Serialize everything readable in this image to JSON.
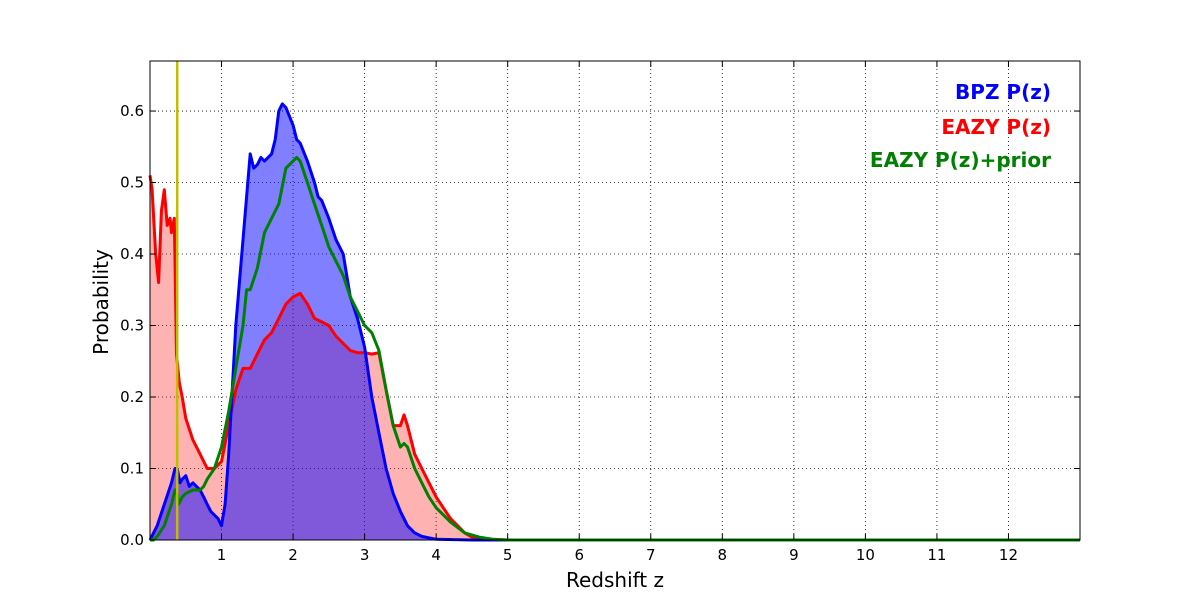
{
  "chart_data": {
    "type": "area",
    "title": "",
    "xlabel": "Redshift z",
    "ylabel": "Probability",
    "xlim": [
      0,
      13
    ],
    "ylim": [
      0,
      0.67
    ],
    "xticks": [
      1,
      2,
      3,
      4,
      5,
      6,
      7,
      8,
      9,
      10,
      11,
      12
    ],
    "yticks": [
      0.0,
      0.1,
      0.2,
      0.3,
      0.4,
      0.5,
      0.6
    ],
    "ytick_labels": [
      "0.0",
      "0.1",
      "0.2",
      "0.3",
      "0.4",
      "0.5",
      "0.6"
    ],
    "grid": true,
    "legend_position": "top-right",
    "vline": {
      "x": 0.38,
      "color": "#bfbf00"
    },
    "series": [
      {
        "name": "EAZY P(z)",
        "color": "#ff0000",
        "fill": "#ff0000",
        "fill_opacity": 0.3,
        "x": [
          0.0,
          0.03,
          0.08,
          0.12,
          0.16,
          0.2,
          0.24,
          0.28,
          0.3,
          0.34,
          0.37,
          0.39,
          0.41,
          0.45,
          0.5,
          0.6,
          0.7,
          0.8,
          0.9,
          1.0,
          1.1,
          1.2,
          1.3,
          1.4,
          1.5,
          1.6,
          1.7,
          1.8,
          1.9,
          2.0,
          2.1,
          2.2,
          2.3,
          2.4,
          2.5,
          2.6,
          2.7,
          2.8,
          2.9,
          3.0,
          3.1,
          3.2,
          3.3,
          3.4,
          3.5,
          3.55,
          3.6,
          3.7,
          3.8,
          3.9,
          4.0,
          4.1,
          4.2,
          4.3,
          4.4,
          4.5,
          4.7,
          5.0,
          13.0
        ],
        "values": [
          0.51,
          0.49,
          0.4,
          0.36,
          0.46,
          0.49,
          0.44,
          0.45,
          0.43,
          0.45,
          0.26,
          0.24,
          0.22,
          0.2,
          0.17,
          0.14,
          0.12,
          0.1,
          0.1,
          0.11,
          0.16,
          0.21,
          0.24,
          0.24,
          0.26,
          0.28,
          0.29,
          0.31,
          0.33,
          0.34,
          0.345,
          0.33,
          0.31,
          0.305,
          0.3,
          0.285,
          0.275,
          0.265,
          0.262,
          0.262,
          0.26,
          0.262,
          0.21,
          0.16,
          0.16,
          0.175,
          0.16,
          0.12,
          0.1,
          0.08,
          0.06,
          0.045,
          0.03,
          0.02,
          0.01,
          0.004,
          0.001,
          0.0,
          0.0
        ]
      },
      {
        "name": "BPZ P(z)",
        "color": "#0000ff",
        "fill": "#0000ff",
        "fill_opacity": 0.5,
        "x": [
          0.0,
          0.1,
          0.2,
          0.3,
          0.35,
          0.38,
          0.42,
          0.45,
          0.5,
          0.55,
          0.6,
          0.7,
          0.75,
          0.8,
          0.85,
          0.9,
          0.95,
          1.0,
          1.05,
          1.1,
          1.2,
          1.3,
          1.35,
          1.4,
          1.45,
          1.5,
          1.55,
          1.6,
          1.7,
          1.75,
          1.8,
          1.85,
          1.9,
          2.0,
          2.05,
          2.1,
          2.2,
          2.3,
          2.35,
          2.4,
          2.5,
          2.6,
          2.7,
          2.8,
          2.9,
          3.0,
          3.1,
          3.2,
          3.3,
          3.4,
          3.5,
          3.6,
          3.7,
          3.8,
          4.0,
          4.5,
          13.0
        ],
        "values": [
          0.0,
          0.02,
          0.05,
          0.08,
          0.1,
          0.1,
          0.08,
          0.085,
          0.09,
          0.075,
          0.08,
          0.07,
          0.06,
          0.05,
          0.04,
          0.035,
          0.03,
          0.02,
          0.05,
          0.12,
          0.3,
          0.42,
          0.48,
          0.54,
          0.52,
          0.525,
          0.535,
          0.53,
          0.54,
          0.56,
          0.6,
          0.61,
          0.605,
          0.58,
          0.56,
          0.555,
          0.53,
          0.5,
          0.48,
          0.475,
          0.45,
          0.42,
          0.4,
          0.34,
          0.31,
          0.27,
          0.2,
          0.15,
          0.1,
          0.065,
          0.04,
          0.02,
          0.01,
          0.005,
          0.001,
          0.0,
          0.0
        ]
      },
      {
        "name": "EAZY P(z)+prior",
        "color": "#008000",
        "fill": "none",
        "fill_opacity": 0,
        "x": [
          0.0,
          0.05,
          0.1,
          0.2,
          0.3,
          0.35,
          0.38,
          0.4,
          0.45,
          0.5,
          0.6,
          0.7,
          0.75,
          0.8,
          0.9,
          1.0,
          1.1,
          1.2,
          1.3,
          1.35,
          1.4,
          1.5,
          1.6,
          1.7,
          1.8,
          1.9,
          2.0,
          2.05,
          2.1,
          2.2,
          2.3,
          2.4,
          2.5,
          2.6,
          2.7,
          2.8,
          2.9,
          3.0,
          3.1,
          3.2,
          3.3,
          3.4,
          3.5,
          3.55,
          3.6,
          3.7,
          3.8,
          3.9,
          4.0,
          4.2,
          4.4,
          4.6,
          4.8,
          5.0,
          13.0
        ],
        "values": [
          0.0,
          0.0,
          0.005,
          0.02,
          0.05,
          0.07,
          0.065,
          0.05,
          0.06,
          0.065,
          0.07,
          0.07,
          0.075,
          0.085,
          0.1,
          0.13,
          0.18,
          0.24,
          0.3,
          0.35,
          0.35,
          0.38,
          0.43,
          0.45,
          0.47,
          0.52,
          0.53,
          0.535,
          0.53,
          0.5,
          0.47,
          0.44,
          0.41,
          0.39,
          0.37,
          0.34,
          0.32,
          0.3,
          0.29,
          0.265,
          0.21,
          0.16,
          0.13,
          0.135,
          0.13,
          0.1,
          0.08,
          0.06,
          0.045,
          0.025,
          0.01,
          0.004,
          0.001,
          0.0,
          0.0
        ]
      }
    ],
    "legend": [
      {
        "label": "BPZ P(z)",
        "color": "#0000ff"
      },
      {
        "label": "EAZY P(z)",
        "color": "#ff0000"
      },
      {
        "label": "EAZY P(z)+prior",
        "color": "#008000"
      }
    ]
  }
}
